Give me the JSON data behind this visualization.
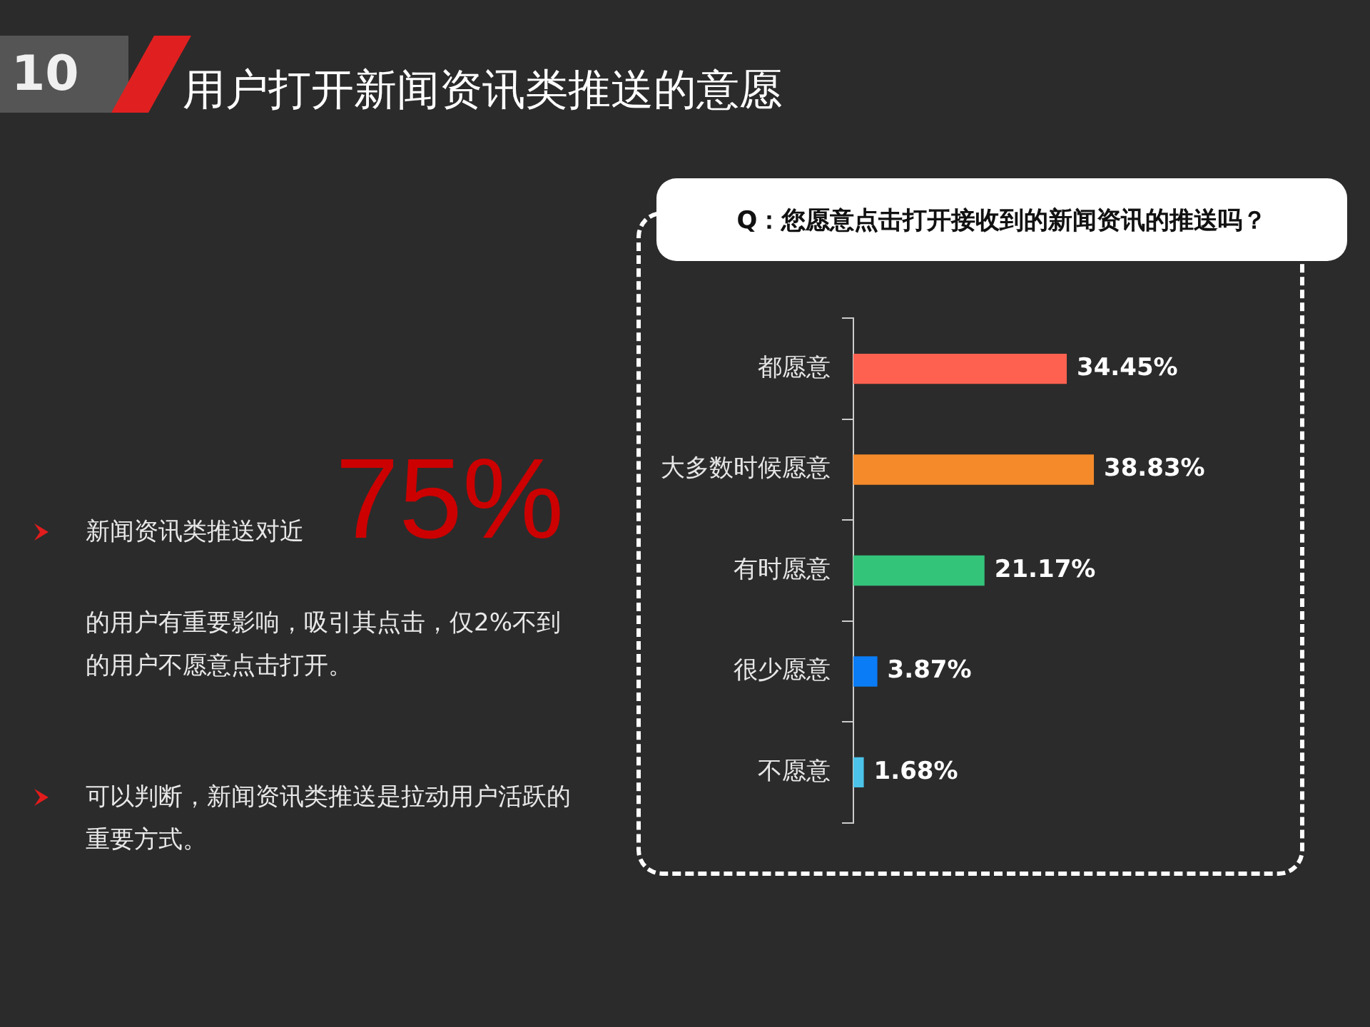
{
  "chart_data": {
    "type": "bar",
    "orientation": "horizontal",
    "title": "用户打开新闻资讯类推送的意愿",
    "subtitle": "Q：您愿意点击打开接收到的新闻资讯的推送吗？",
    "categories": [
      "都愿意",
      "大多数时候愿意",
      "有时愿意",
      "很少愿意",
      "不愿意"
    ],
    "values": [
      34.45,
      38.83,
      21.17,
      3.87,
      1.68
    ],
    "value_labels": [
      "34.45%",
      "38.83%",
      "21.17%",
      "3.87%",
      "1.68%"
    ],
    "colors": [
      "#ff6150",
      "#f58a2a",
      "#33c47a",
      "#0a7cf5",
      "#4cc3e8"
    ],
    "tick_labels": "y",
    "legend": false,
    "annotations": [
      "10",
      "新闻资讯类推送对近",
      "75%",
      "的用户有重要影响，吸引其点击，仅2%不到的用户不愿意点击打开。",
      "可以判断，新闻资讯类推送是拉动用户活跃的重要方式。"
    ]
  }
}
